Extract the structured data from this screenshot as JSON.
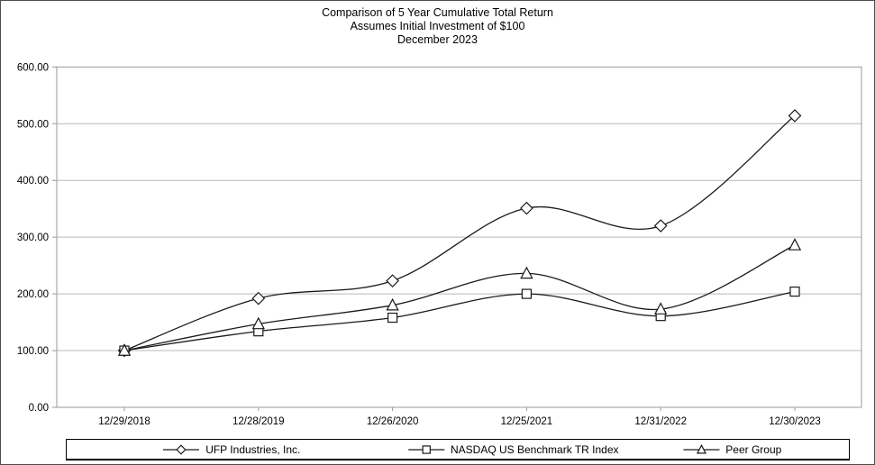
{
  "chart": {
    "title": "Comparison of 5 Year Cumulative Total Return",
    "subtitle_investment": "Assumes Initial Investment of $100",
    "subtitle_date": "December 2023"
  },
  "chart_data": {
    "type": "line",
    "smooth": true,
    "categories": [
      "12/29/2018",
      "12/28/2019",
      "12/26/2020",
      "12/25/2021",
      "12/31/2022",
      "12/30/2023"
    ],
    "series": [
      {
        "name": "UFP Industries, Inc.",
        "marker": "diamond",
        "values": [
          100,
          192,
          223,
          351,
          320,
          514
        ]
      },
      {
        "name": "NASDAQ US Benchmark TR Index",
        "marker": "square",
        "values": [
          100,
          134,
          158,
          200,
          161,
          204
        ]
      },
      {
        "name": "Peer Group",
        "marker": "triangle",
        "values": [
          100,
          147,
          180,
          236,
          173,
          286
        ]
      }
    ],
    "ylim": [
      0,
      600
    ],
    "ytick_step": 100,
    "ytick_labels": [
      "0.00",
      "100.00",
      "200.00",
      "300.00",
      "400.00",
      "500.00",
      "600.00"
    ],
    "grid": "horizontal",
    "legend_position": "bottom",
    "line_color": "#1a1a1a",
    "marker_fill": "#ffffff",
    "grid_color": "#b8b8b8",
    "axis_color": "#999999",
    "text_color": "#000000"
  }
}
